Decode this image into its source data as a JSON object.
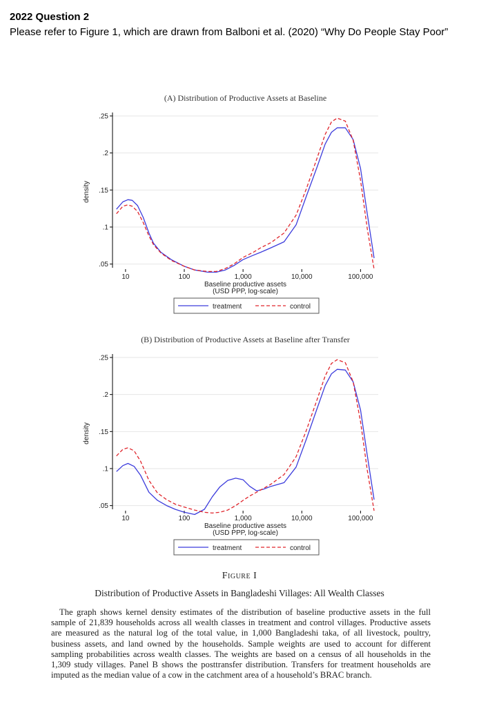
{
  "question": {
    "title": "2022 Question 2",
    "body": "Please refer to Figure 1, which are drawn from Balboni et al. (2020) “Why Do People Stay Poor”"
  },
  "figure": {
    "number": "Figure I",
    "title": "Distribution of Productive Assets in Bangladeshi Villages: All Wealth Classes",
    "caption": "The graph shows kernel density estimates of the distribution of baseline productive assets in the full sample of 21,839 households across all wealth classes in treatment and control villages. Productive assets are measured as the natural log of the total value, in 1,000 Bangladeshi taka, of all livestock, poultry, business assets, and land owned by the households. Sample weights are used to account for different sampling probabilities across wealth classes. The weights are based on a census of all households in the 1,309 study villages. Panel B shows the posttransfer distribution. Transfers for treatment households are imputed as the median value of a cow in the catchment area of a household’s BRAC branch."
  },
  "colors": {
    "treatment": "#3b3bdc",
    "control": "#e0242b",
    "grid": "#e6e6e6"
  },
  "chart_data": [
    {
      "type": "line",
      "title": "(A) Distribution of Productive Assets at Baseline",
      "xlabel": "Baseline productive assets",
      "xlabel2": "(USD PPP, log-scale)",
      "ylabel": "density",
      "xscale": "log",
      "xlim": [
        6,
        200000
      ],
      "ylim": [
        0.045,
        0.25
      ],
      "xticks": [
        10,
        100,
        1000,
        10000,
        100000
      ],
      "xticklabels": [
        "10",
        "100",
        "1,000",
        "10,000",
        "100,000"
      ],
      "yticks": [
        0.05,
        0.1,
        0.15,
        0.2,
        0.25
      ],
      "yticklabels": [
        ".05",
        ".1",
        ".15",
        ".2",
        ".25"
      ],
      "grid": true,
      "legend_position": "bottom",
      "series": [
        {
          "name": "treatment",
          "style": "solid",
          "x": [
            7,
            9,
            11,
            13,
            16,
            20,
            25,
            30,
            40,
            60,
            100,
            150,
            250,
            350,
            500,
            700,
            1000,
            1500,
            2000,
            3000,
            5000,
            8000,
            12000,
            18000,
            25000,
            32000,
            40000,
            55000,
            75000,
            100000,
            130000,
            170000
          ],
          "y": [
            0.124,
            0.134,
            0.137,
            0.136,
            0.129,
            0.113,
            0.092,
            0.078,
            0.066,
            0.056,
            0.047,
            0.042,
            0.039,
            0.039,
            0.042,
            0.048,
            0.056,
            0.062,
            0.066,
            0.072,
            0.08,
            0.103,
            0.142,
            0.18,
            0.212,
            0.228,
            0.234,
            0.234,
            0.218,
            0.179,
            0.118,
            0.058
          ]
        },
        {
          "name": "control",
          "style": "dashed",
          "x": [
            7,
            9,
            11,
            13,
            16,
            20,
            25,
            30,
            40,
            60,
            100,
            150,
            250,
            350,
            500,
            700,
            1000,
            1500,
            2000,
            3000,
            5000,
            8000,
            12000,
            18000,
            25000,
            32000,
            40000,
            55000,
            75000,
            100000,
            130000,
            170000
          ],
          "y": [
            0.118,
            0.128,
            0.13,
            0.128,
            0.121,
            0.106,
            0.088,
            0.076,
            0.065,
            0.055,
            0.047,
            0.042,
            0.04,
            0.04,
            0.044,
            0.05,
            0.059,
            0.066,
            0.072,
            0.079,
            0.092,
            0.116,
            0.152,
            0.192,
            0.225,
            0.242,
            0.247,
            0.243,
            0.217,
            0.163,
            0.098,
            0.043
          ]
        }
      ]
    },
    {
      "type": "line",
      "title": "(B) Distribution of Productive Assets at Baseline after Transfer",
      "xlabel": "Baseline productive assets",
      "xlabel2": "(USD PPP, log-scale)",
      "ylabel": "density",
      "xscale": "log",
      "xlim": [
        6,
        200000
      ],
      "ylim": [
        0.045,
        0.25
      ],
      "xticks": [
        10,
        100,
        1000,
        10000,
        100000
      ],
      "xticklabels": [
        "10",
        "100",
        "1,000",
        "10,000",
        "100,000"
      ],
      "yticks": [
        0.05,
        0.1,
        0.15,
        0.2,
        0.25
      ],
      "yticklabels": [
        ".05",
        ".1",
        ".15",
        ".2",
        ".25"
      ],
      "grid": true,
      "legend_position": "bottom",
      "series": [
        {
          "name": "treatment",
          "style": "solid",
          "x": [
            7,
            9,
            11,
            14,
            18,
            25,
            35,
            50,
            70,
            100,
            150,
            220,
            300,
            400,
            550,
            750,
            1000,
            1300,
            1700,
            2200,
            3000,
            5000,
            8000,
            12000,
            18000,
            25000,
            32000,
            40000,
            55000,
            75000,
            100000,
            130000,
            170000
          ],
          "y": [
            0.096,
            0.104,
            0.107,
            0.103,
            0.091,
            0.068,
            0.057,
            0.05,
            0.045,
            0.041,
            0.038,
            0.045,
            0.062,
            0.075,
            0.084,
            0.087,
            0.085,
            0.076,
            0.07,
            0.072,
            0.076,
            0.081,
            0.102,
            0.14,
            0.18,
            0.212,
            0.228,
            0.234,
            0.233,
            0.217,
            0.179,
            0.118,
            0.058
          ]
        },
        {
          "name": "control",
          "style": "dashed",
          "x": [
            7,
            9,
            11,
            14,
            18,
            25,
            35,
            50,
            70,
            100,
            150,
            220,
            300,
            400,
            550,
            750,
            1000,
            1300,
            1700,
            2200,
            3000,
            5000,
            8000,
            12000,
            18000,
            25000,
            32000,
            40000,
            55000,
            75000,
            100000,
            130000,
            170000
          ],
          "y": [
            0.117,
            0.126,
            0.128,
            0.124,
            0.11,
            0.084,
            0.067,
            0.058,
            0.052,
            0.048,
            0.044,
            0.041,
            0.04,
            0.041,
            0.044,
            0.05,
            0.057,
            0.063,
            0.068,
            0.073,
            0.079,
            0.092,
            0.116,
            0.152,
            0.192,
            0.225,
            0.242,
            0.247,
            0.243,
            0.217,
            0.163,
            0.098,
            0.043
          ]
        }
      ]
    }
  ]
}
